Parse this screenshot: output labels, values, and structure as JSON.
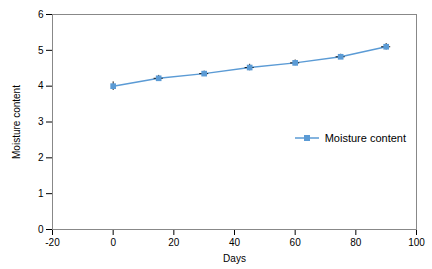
{
  "chart_data": {
    "type": "line",
    "xlabel": "Days",
    "ylabel": "Moisture content",
    "x": [
      0,
      15,
      30,
      45,
      60,
      75,
      90
    ],
    "series": [
      {
        "name": "Moisture content",
        "color": "#5B9BD5",
        "marker": "square",
        "values": [
          4.0,
          4.22,
          4.35,
          4.52,
          4.65,
          4.82,
          5.1
        ],
        "yerr": [
          0.12,
          0.08,
          0.07,
          0.09,
          0.08,
          0.07,
          0.09
        ],
        "xerr": [
          0.0,
          1.5,
          1.5,
          1.5,
          1.5,
          1.5,
          1.5
        ]
      }
    ],
    "xlim": [
      -20,
      100
    ],
    "ylim": [
      0,
      6
    ],
    "xticks": [
      -20,
      0,
      20,
      40,
      60,
      80,
      100
    ],
    "yticks": [
      0,
      1,
      2,
      3,
      4,
      5,
      6
    ],
    "grid": false,
    "legend": "right"
  }
}
